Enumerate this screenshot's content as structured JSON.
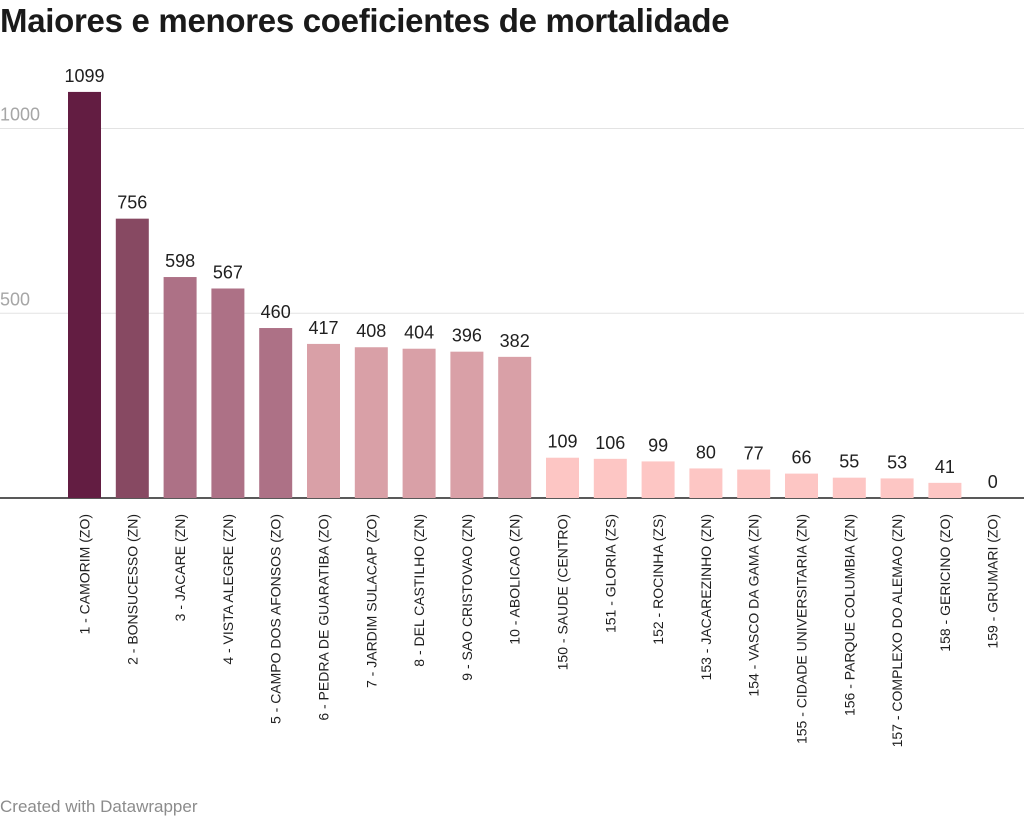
{
  "title": "Maiores e menores coeficientes de mortalidade",
  "footer": "Created with Datawrapper",
  "chart_data": {
    "type": "bar",
    "title": "Maiores e menores coeficientes de mortalidade",
    "xlabel": "",
    "ylabel": "",
    "ylim": [
      0,
      1100
    ],
    "yticks": [
      "500",
      "1000"
    ],
    "grid": true,
    "legend": "none",
    "categories": [
      "1 - CAMORIM (ZO)",
      "2 - BONSUCESSO (ZN)",
      "3 - JACARE (ZN)",
      "4 - VISTA ALEGRE (ZN)",
      "5 - CAMPO DOS AFONSOS (ZO)",
      "6 - PEDRA DE GUARATIBA (ZO)",
      "7 - JARDIM SULACAP (ZO)",
      "8 - DEL CASTILHO (ZN)",
      "9 - SAO CRISTOVAO (ZN)",
      "10 - ABOLICAO (ZN)",
      "150 - SAUDE (CENTRO)",
      "151 - GLORIA (ZS)",
      "152 - ROCINHA (ZS)",
      "153 - JACAREZINHO (ZN)",
      "154 - VASCO DA GAMA (ZN)",
      "155 - CIDADE UNIVERSITARIA (ZN)",
      "156 - PARQUE COLUMBIA (ZN)",
      "157 - COMPLEXO DO ALEMAO (ZN)",
      "158 - GERICINO (ZO)",
      "159 - GRUMARI (ZO)"
    ],
    "values": [
      1099,
      756,
      598,
      567,
      460,
      417,
      408,
      404,
      396,
      382,
      109,
      106,
      99,
      80,
      77,
      66,
      55,
      53,
      41,
      0
    ],
    "value_labels": [
      "1099",
      "756",
      "598",
      "567",
      "460",
      "417",
      "408",
      "404",
      "396",
      "382",
      "109",
      "106",
      "99",
      "80",
      "77",
      "66",
      "55",
      "53",
      "41",
      "0"
    ],
    "colors": [
      "#631d42",
      "#874962",
      "#ad7186",
      "#ad7186",
      "#ad7186",
      "#d9a0a7",
      "#d9a0a7",
      "#d9a0a7",
      "#d9a0a7",
      "#d9a0a7",
      "#fdc6c4",
      "#fdc6c4",
      "#fdc6c4",
      "#fdc6c4",
      "#fdc6c4",
      "#fdc6c4",
      "#fdc6c4",
      "#fdc6c4",
      "#fdc6c4",
      "#fdc6c4"
    ]
  }
}
